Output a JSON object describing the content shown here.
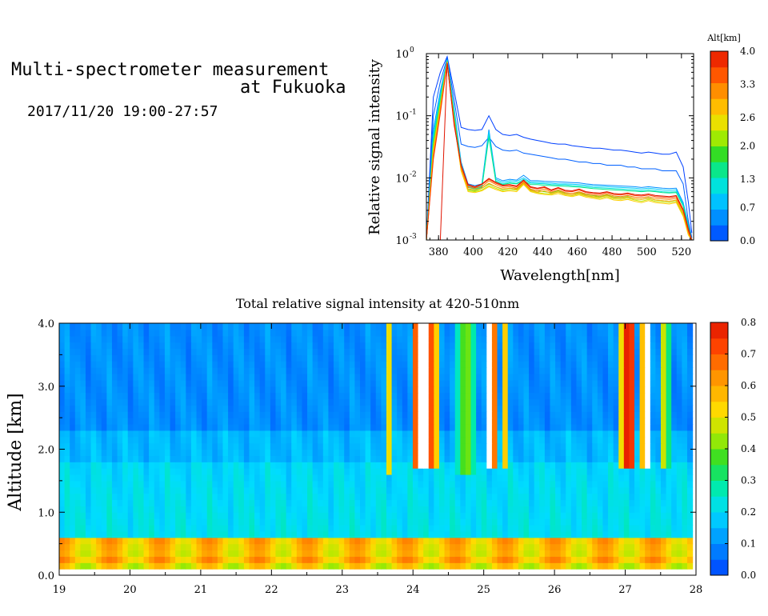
{
  "header": {
    "title_line1": "Multi-spectrometer measurement",
    "title_line2": "at Fukuoka",
    "subtitle": "2017/11/20 19:00-27:57"
  },
  "chart_data": [
    {
      "type": "line",
      "title": "",
      "xlabel": "Wavelength[nm]",
      "ylabel": "Relative signal intensity",
      "xlim": [
        373,
        527
      ],
      "ylim": [
        0.001,
        1
      ],
      "yscale": "log",
      "x_ticks": [
        "380",
        "400",
        "420",
        "440",
        "460",
        "480",
        "500",
        "520"
      ],
      "y_ticks": [
        "10^-3",
        "10^-2",
        "10^-1",
        "10^0"
      ],
      "colorbar": {
        "label": "Alt[km]",
        "ticks": [
          "0.0",
          "0.7",
          "1.3",
          "2.0",
          "2.6",
          "3.3",
          "4.0"
        ],
        "range": [
          0,
          4.0
        ]
      },
      "x": [
        373,
        377,
        381,
        385,
        389,
        393,
        397,
        401,
        405,
        409,
        413,
        417,
        421,
        425,
        429,
        433,
        437,
        441,
        445,
        449,
        453,
        457,
        461,
        465,
        469,
        473,
        477,
        481,
        485,
        489,
        493,
        497,
        501,
        505,
        509,
        513,
        517,
        521,
        524,
        526
      ],
      "series": [
        {
          "alt": 0.0,
          "values": [
            0.001,
            0.2,
            0.5,
            0.9,
            0.25,
            0.065,
            0.06,
            0.058,
            0.06,
            0.1,
            0.06,
            0.05,
            0.048,
            0.05,
            0.045,
            0.042,
            0.04,
            0.038,
            0.036,
            0.035,
            0.035,
            0.033,
            0.032,
            0.031,
            0.03,
            0.03,
            0.029,
            0.028,
            0.028,
            0.027,
            0.026,
            0.025,
            0.026,
            0.025,
            0.024,
            0.024,
            0.026,
            0.015,
            0.004,
            0.0013
          ]
        },
        {
          "alt": 0.2,
          "values": [
            0.001,
            0.1,
            0.35,
            0.85,
            0.18,
            0.035,
            0.032,
            0.031,
            0.033,
            0.045,
            0.032,
            0.028,
            0.027,
            0.028,
            0.025,
            0.024,
            0.023,
            0.022,
            0.021,
            0.02,
            0.02,
            0.019,
            0.018,
            0.018,
            0.017,
            0.017,
            0.016,
            0.016,
            0.016,
            0.015,
            0.015,
            0.014,
            0.014,
            0.014,
            0.013,
            0.013,
            0.013,
            0.008,
            0.002,
            0.0011
          ]
        },
        {
          "alt": 0.5,
          "values": [
            0.001,
            0.06,
            0.25,
            0.8,
            0.13,
            0.018,
            0.008,
            0.0075,
            0.008,
            0.06,
            0.01,
            0.009,
            0.0095,
            0.0092,
            0.011,
            0.009,
            0.009,
            0.0088,
            0.0087,
            0.0086,
            0.0085,
            0.0084,
            0.0083,
            0.008,
            0.0078,
            0.0077,
            0.0076,
            0.0075,
            0.0074,
            0.0073,
            0.0072,
            0.007,
            0.0072,
            0.007,
            0.0068,
            0.0067,
            0.0068,
            0.004,
            0.0018,
            0.001
          ]
        },
        {
          "alt": 0.9,
          "values": [
            0.001,
            0.05,
            0.22,
            0.8,
            0.12,
            0.017,
            0.0075,
            0.007,
            0.0075,
            0.055,
            0.0095,
            0.0085,
            0.009,
            0.0088,
            0.01,
            0.0085,
            0.0085,
            0.0083,
            0.0082,
            0.008,
            0.008,
            0.0079,
            0.0078,
            0.0076,
            0.0074,
            0.0073,
            0.0072,
            0.0071,
            0.007,
            0.0069,
            0.0068,
            0.0066,
            0.0068,
            0.0066,
            0.0064,
            0.0063,
            0.0064,
            0.0038,
            0.0017,
            0.001
          ]
        },
        {
          "alt": 1.2,
          "values": [
            0.001,
            0.045,
            0.2,
            0.78,
            0.11,
            0.016,
            0.0072,
            0.0068,
            0.0072,
            0.05,
            0.009,
            0.008,
            0.0085,
            0.0082,
            0.0095,
            0.0082,
            0.0081,
            0.008,
            0.0078,
            0.0077,
            0.0077,
            0.0075,
            0.0074,
            0.0072,
            0.007,
            0.0069,
            0.0068,
            0.0067,
            0.0066,
            0.0065,
            0.0064,
            0.0062,
            0.0064,
            0.0062,
            0.006,
            0.0059,
            0.006,
            0.0036,
            0.0016,
            0.001
          ]
        },
        {
          "alt": 1.5,
          "values": [
            0.001,
            0.04,
            0.18,
            0.76,
            0.1,
            0.015,
            0.007,
            0.0066,
            0.007,
            0.045,
            0.0086,
            0.0078,
            0.0082,
            0.008,
            0.009,
            0.0078,
            0.0078,
            0.0076,
            0.0075,
            0.0074,
            0.0073,
            0.0072,
            0.0071,
            0.0069,
            0.0067,
            0.0066,
            0.0065,
            0.0064,
            0.0063,
            0.0062,
            0.0061,
            0.006,
            0.0061,
            0.006,
            0.0058,
            0.0057,
            0.0058,
            0.0035,
            0.0016,
            0.001
          ]
        },
        {
          "alt": 2.0,
          "values": [
            0.001,
            0.035,
            0.16,
            0.75,
            0.09,
            0.014,
            0.0065,
            0.0062,
            0.0068,
            0.008,
            0.0072,
            0.0065,
            0.0068,
            0.0066,
            0.0085,
            0.0065,
            0.0062,
            0.006,
            0.0058,
            0.0062,
            0.0057,
            0.0056,
            0.0058,
            0.0054,
            0.0052,
            0.005,
            0.0053,
            0.0049,
            0.0048,
            0.005,
            0.0046,
            0.0045,
            0.0048,
            0.0044,
            0.0043,
            0.0042,
            0.0044,
            0.0026,
            0.0013,
            0.001
          ]
        },
        {
          "alt": 2.3,
          "values": [
            0.001,
            0.03,
            0.15,
            0.74,
            0.085,
            0.013,
            0.0062,
            0.006,
            0.0064,
            0.0075,
            0.0068,
            0.0062,
            0.0065,
            0.0063,
            0.008,
            0.0062,
            0.0058,
            0.0056,
            0.0055,
            0.0059,
            0.0054,
            0.0052,
            0.0055,
            0.0051,
            0.0049,
            0.0047,
            0.005,
            0.0046,
            0.0045,
            0.0047,
            0.0044,
            0.0042,
            0.0045,
            0.0042,
            0.0041,
            0.004,
            0.0042,
            0.0025,
            0.0012,
            0.001
          ]
        },
        {
          "alt": 2.7,
          "values": [
            0.001,
            0.028,
            0.14,
            0.73,
            0.08,
            0.013,
            0.006,
            0.0058,
            0.0062,
            0.0072,
            0.0065,
            0.006,
            0.0062,
            0.006,
            0.0078,
            0.006,
            0.0056,
            0.0054,
            0.0053,
            0.0056,
            0.0052,
            0.005,
            0.0053,
            0.0049,
            0.0047,
            0.0045,
            0.0048,
            0.0044,
            0.0043,
            0.0045,
            0.0042,
            0.004,
            0.0043,
            0.004,
            0.0039,
            0.0038,
            0.004,
            0.0024,
            0.0012,
            0.001
          ]
        },
        {
          "alt": 3.0,
          "values": [
            0.001,
            0.025,
            0.13,
            0.72,
            0.08,
            0.014,
            0.0066,
            0.0064,
            0.0068,
            0.0082,
            0.0072,
            0.0066,
            0.0068,
            0.0065,
            0.0082,
            0.0063,
            0.0059,
            0.0062,
            0.0056,
            0.006,
            0.0055,
            0.0053,
            0.0057,
            0.0052,
            0.005,
            0.0049,
            0.0052,
            0.0048,
            0.0047,
            0.0049,
            0.0046,
            0.0045,
            0.0047,
            0.0044,
            0.0043,
            0.0042,
            0.0044,
            0.0027,
            0.0013,
            0.001
          ]
        },
        {
          "alt": 3.3,
          "values": [
            0.001,
            0.022,
            0.12,
            0.71,
            0.078,
            0.015,
            0.007,
            0.0068,
            0.0072,
            0.009,
            0.0078,
            0.007,
            0.0072,
            0.0068,
            0.0086,
            0.0066,
            0.0062,
            0.0066,
            0.0059,
            0.0064,
            0.0058,
            0.0056,
            0.006,
            0.0055,
            0.0053,
            0.0052,
            0.0055,
            0.0051,
            0.005,
            0.0052,
            0.0049,
            0.0048,
            0.005,
            0.0047,
            0.0046,
            0.0045,
            0.0047,
            0.0029,
            0.0014,
            0.001
          ]
        },
        {
          "alt": 3.7,
          "values": [
            0.001,
            0.02,
            0.11,
            0.7,
            0.075,
            0.016,
            0.0075,
            0.007,
            0.0078,
            0.0095,
            0.0082,
            0.0074,
            0.0076,
            0.0072,
            0.009,
            0.007,
            0.0066,
            0.007,
            0.0062,
            0.0068,
            0.0061,
            0.006,
            0.0064,
            0.0058,
            0.0056,
            0.0055,
            0.0058,
            0.0054,
            0.0053,
            0.0055,
            0.0052,
            0.0051,
            0.0053,
            0.005,
            0.0049,
            0.0048,
            0.005,
            0.003,
            0.0014,
            0.001
          ]
        },
        {
          "alt": 4.0,
          "values": [
            0.001,
            0.001,
            0.001,
            0.7,
            0.07,
            0.016,
            0.0078,
            0.0072,
            0.008,
            0.0098,
            0.0085,
            0.0076,
            0.0078,
            0.0074,
            0.0092,
            0.0072,
            0.0068,
            0.0072,
            0.0064,
            0.007,
            0.0063,
            0.0062,
            0.0066,
            0.006,
            0.0058,
            0.0057,
            0.006,
            0.0056,
            0.0055,
            0.0057,
            0.0054,
            0.0053,
            0.0055,
            0.0052,
            0.0051,
            0.005,
            0.0052,
            0.0031,
            0.0015,
            0.001
          ]
        }
      ]
    },
    {
      "type": "heatmap",
      "title": "Total relative signal intensity at 420-510nm",
      "xlabel": "",
      "ylabel": "Altitude [km]",
      "xlim": [
        19,
        28
      ],
      "ylim": [
        0,
        4.0
      ],
      "x_ticks": [
        "19",
        "20",
        "21",
        "22",
        "23",
        "24",
        "25",
        "26",
        "27",
        "28"
      ],
      "y_ticks": [
        "0.0",
        "1.0",
        "2.0",
        "3.0",
        "4.0"
      ],
      "colorbar": {
        "ticks": [
          "0.0",
          "0.1",
          "0.2",
          "0.3",
          "0.4",
          "0.5",
          "0.6",
          "0.7",
          "0.8"
        ],
        "range": [
          0,
          0.8
        ]
      },
      "data_end_time": 27.95,
      "low_layer": {
        "top_km": 0.6,
        "bottom_km": 0.15,
        "value": 0.55
      },
      "background": {
        "boundary_layer_value": 0.22,
        "upper_value": 0.1
      },
      "cloud_features": [
        {
          "x_center": 23.65,
          "width": 0.12,
          "base_km": 1.6,
          "value": 0.55
        },
        {
          "x_center": 24.15,
          "width": 0.38,
          "base_km": 1.7,
          "value": 0.95
        },
        {
          "x_center": 24.75,
          "width": 0.25,
          "base_km": 1.6,
          "value": 0.45
        },
        {
          "x_center": 25.1,
          "width": 0.18,
          "base_km": 1.7,
          "value": 0.9
        },
        {
          "x_center": 25.3,
          "width": 0.12,
          "base_km": 1.7,
          "value": 0.55
        },
        {
          "x_center": 27.05,
          "width": 0.22,
          "base_km": 1.7,
          "value": 0.9
        },
        {
          "x_center": 27.3,
          "width": 0.14,
          "base_km": 1.7,
          "value": 0.9
        },
        {
          "x_center": 27.55,
          "width": 0.15,
          "base_km": 1.7,
          "value": 0.5
        }
      ]
    }
  ]
}
